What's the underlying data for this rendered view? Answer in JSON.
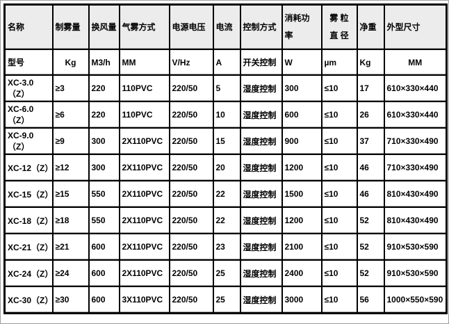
{
  "table": {
    "title_semantic": "product-specification-table",
    "header_row1": [
      "名称",
      "制雾量",
      "换风量",
      "气雾方式",
      "电源电压",
      "电流",
      "控制方式",
      "消耗功\n率",
      "雾 粒\n直 径",
      "净重",
      "外型尺寸"
    ],
    "header_row2": [
      "型号",
      "Kg",
      "M3/h",
      "MM",
      "V/Hz",
      "A",
      "开关控制",
      "W",
      "µm",
      "Kg",
      "MM"
    ],
    "rows": [
      [
        "XC-3.0（Z）",
        "≥3",
        "220",
        "110PVC",
        "220/50",
        "5",
        "湿度控制",
        "300",
        "≤10",
        "17",
        "610×330×440"
      ],
      [
        "XC-6.0（Z）",
        "≥6",
        "220",
        "110PVC",
        "220/50",
        "10",
        "湿度控制",
        "600",
        "≤10",
        "26",
        "610×330×440"
      ],
      [
        "XC-9.0（Z）",
        "≥9",
        "300",
        "2X110PVC",
        "220/50",
        "15",
        "湿度控制",
        "900",
        "≤10",
        "37",
        "710×330×490"
      ],
      [
        "XC-12（Z）",
        "≥12",
        "300",
        "2X110PVC",
        "220/50",
        "20",
        "湿度控制",
        "1200",
        "≤10",
        "46",
        "710×330×490"
      ],
      [
        "XC-15（Z）",
        "≥15",
        "550",
        "2X110PVC",
        "220/50",
        "22",
        "湿度控制",
        "1500",
        "≤10",
        "46",
        "810×430×490"
      ],
      [
        "XC-18（Z）",
        "≥18",
        "550",
        "2X110PVC",
        "220/50",
        "22",
        "湿度控制",
        "1200",
        "≤10",
        "52",
        "810×430×490"
      ],
      [
        "XC-21（Z）",
        "≥21",
        "600",
        "2X110PVC",
        "220/50",
        "23",
        "湿度控制",
        "2100",
        "≤10",
        "52",
        "910×530×590"
      ],
      [
        "XC-24（Z）",
        "≥24",
        "600",
        "2X110PVC",
        "220/50",
        "25",
        "湿度控制",
        "2400",
        "≤10",
        "52",
        "910×530×590"
      ],
      [
        "XC-30（Z）",
        "≥30",
        "600",
        "3X110PVC",
        "220/50",
        "25",
        "湿度控制",
        "3000",
        "≤10",
        "56",
        "1000×550×590"
      ]
    ]
  },
  "colors": {
    "header_bg": "#ececec",
    "grid_border": "#000000",
    "grid_shadow": "#a9a9a9",
    "page_edge": "#9e9e9e",
    "text": "#000000",
    "cell_bg": "#ffffff"
  }
}
